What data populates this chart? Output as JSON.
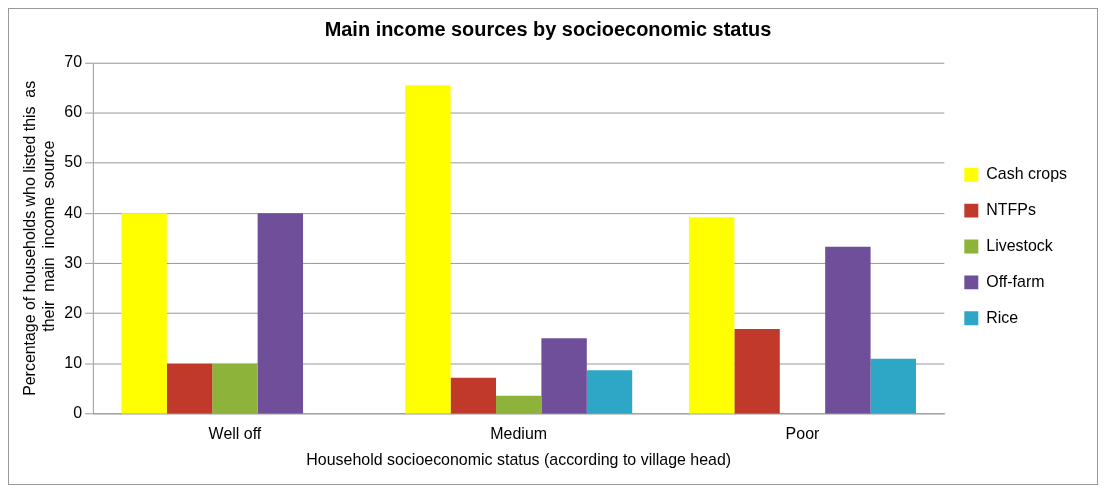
{
  "chart_data": {
    "type": "bar",
    "title": "Main income sources by socioeconomic status",
    "xlabel": "Household socioeconomic status (according to village head)",
    "ylabel": "Percentage of households who listed this  as  their  main  income  source",
    "categories": [
      "Well off",
      "Medium",
      "Poor"
    ],
    "series": [
      {
        "name": "Cash crops",
        "color": "#ffff00",
        "values": [
          40,
          65.5,
          39.2
        ]
      },
      {
        "name": "NTFPs",
        "color": "#c0392b",
        "values": [
          10,
          7.2,
          16.9
        ]
      },
      {
        "name": "Livestock",
        "color": "#8db33a",
        "values": [
          10,
          3.6,
          null
        ]
      },
      {
        "name": "Off-farm",
        "color": "#6f4f9a",
        "values": [
          40,
          15.1,
          33.3
        ]
      },
      {
        "name": "Rice",
        "color": "#2ea6c6",
        "values": [
          null,
          8.7,
          11
        ]
      }
    ],
    "ylim": [
      0,
      70
    ],
    "yticks": [
      0,
      10,
      20,
      30,
      40,
      50,
      60,
      70
    ],
    "grid": "y",
    "legend": "right"
  }
}
